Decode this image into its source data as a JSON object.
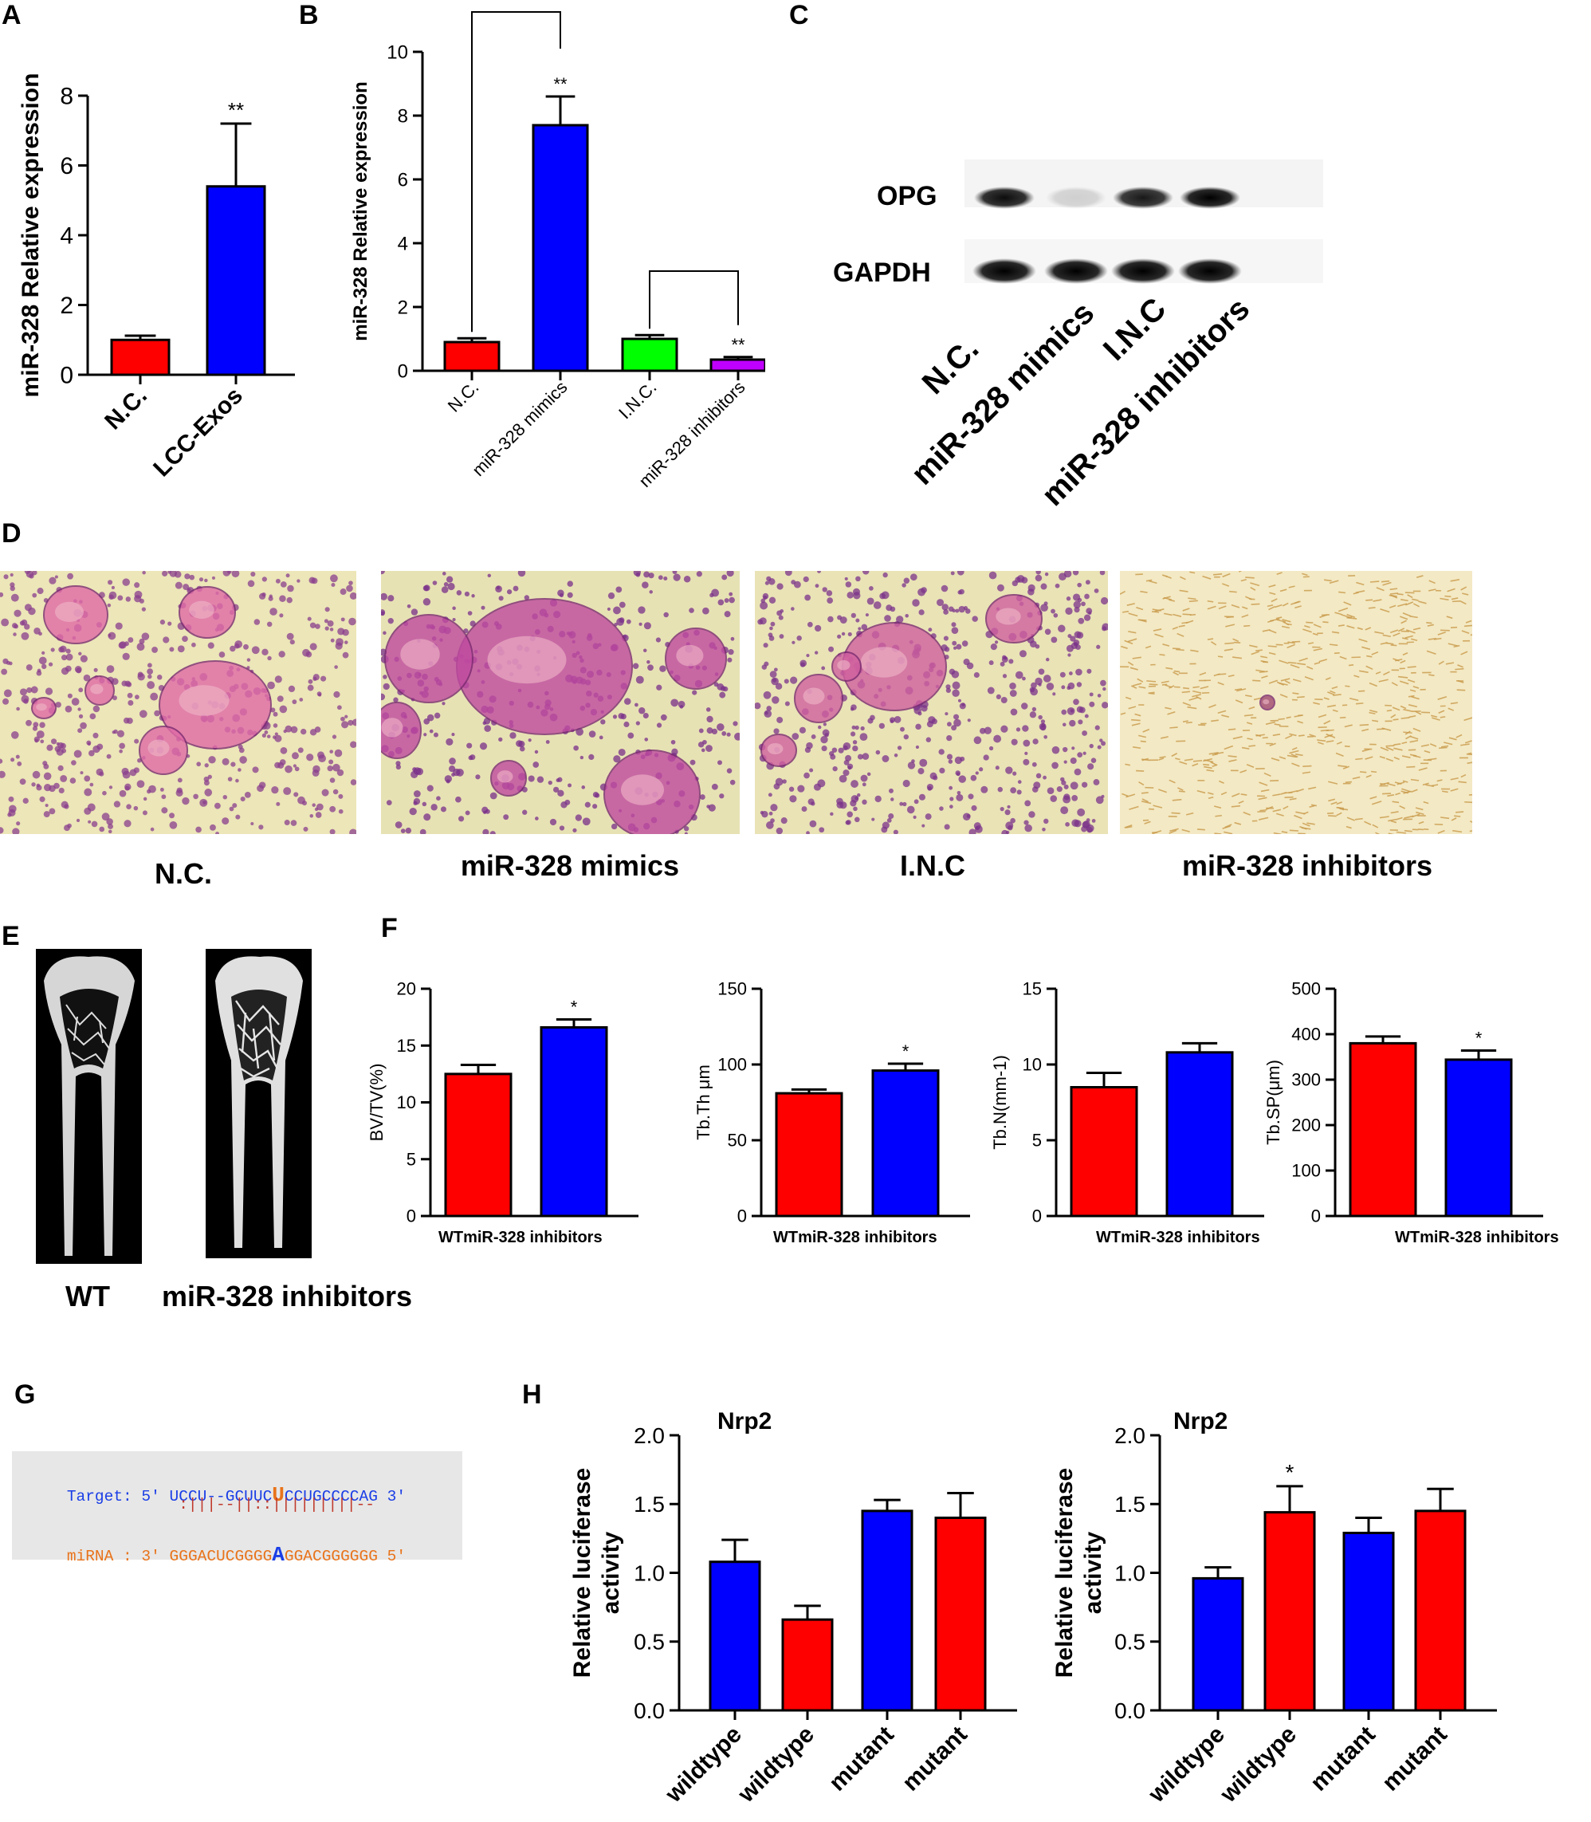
{
  "panel_labels": {
    "A": "A",
    "B": "B",
    "C": "C",
    "D": "D",
    "E": "E",
    "F": "F",
    "G": "G",
    "H": "H"
  },
  "colors": {
    "red": "#ff0000",
    "blue": "#0000ff",
    "green": "#00ff00",
    "purple": "#c000ff"
  },
  "chart_data": [
    {
      "id": "A",
      "type": "bar",
      "ylabel": "miR-328 Relative expression",
      "ylim": [
        0,
        8
      ],
      "yticks": [
        0,
        2,
        4,
        6,
        8
      ],
      "categories": [
        "N.C.",
        "LCC-Exos"
      ],
      "values": [
        1.0,
        5.4
      ],
      "errors": [
        0.12,
        1.8
      ],
      "colors": [
        "#ff0000",
        "#0000ff"
      ],
      "annotations": [
        "",
        "**"
      ]
    },
    {
      "id": "B",
      "type": "bar",
      "ylabel": "miR-328 Relative expression",
      "ylim": [
        0,
        10
      ],
      "yticks": [
        0,
        2,
        4,
        6,
        8,
        10
      ],
      "categories": [
        "N.C.",
        "miR-328 mimics",
        "I.N.C.",
        "miR-328 inhibitors"
      ],
      "values": [
        0.9,
        7.7,
        1.0,
        0.35
      ],
      "errors": [
        0.12,
        0.9,
        0.12,
        0.08
      ],
      "colors": [
        "#ff0000",
        "#0000ff",
        "#00ff00",
        "#c000ff"
      ],
      "annotations": [
        "",
        "**",
        "",
        "**"
      ],
      "brackets": [
        [
          0,
          1
        ],
        [
          2,
          3
        ]
      ]
    },
    {
      "id": "F1",
      "type": "bar",
      "ylabel": "BV/TV(%)",
      "ylim": [
        0,
        20
      ],
      "yticks": [
        0,
        5,
        10,
        15,
        20
      ],
      "xlabel_text": "WTmiR-328 inhibitors",
      "values": [
        12.5,
        16.6
      ],
      "errors": [
        0.8,
        0.7
      ],
      "colors": [
        "#ff0000",
        "#0000ff"
      ],
      "annotations": [
        "",
        "*"
      ]
    },
    {
      "id": "F2",
      "type": "bar",
      "ylabel": "Tb.Th μm",
      "ylim": [
        0,
        150
      ],
      "yticks": [
        0,
        50,
        100,
        150
      ],
      "xlabel_text": "WTmiR-328 inhibitors",
      "values": [
        81,
        96
      ],
      "errors": [
        2.5,
        4.5
      ],
      "colors": [
        "#ff0000",
        "#0000ff"
      ],
      "annotations": [
        "",
        "*"
      ]
    },
    {
      "id": "F3",
      "type": "bar",
      "ylabel": "Tb.N(mm-1)",
      "ylim": [
        0,
        15
      ],
      "yticks": [
        0,
        5,
        10,
        15
      ],
      "xlabel_text": "WTmiR-328 inhibitors",
      "values": [
        8.5,
        10.8
      ],
      "errors": [
        0.95,
        0.6
      ],
      "colors": [
        "#ff0000",
        "#0000ff"
      ],
      "annotations": [
        "",
        ""
      ]
    },
    {
      "id": "F4",
      "type": "bar",
      "ylabel": "Tb.SP(μm)",
      "ylim": [
        0,
        500
      ],
      "yticks": [
        0,
        100,
        200,
        300,
        400,
        500
      ],
      "xlabel_text": "WTmiR-328 inhibitors",
      "values": [
        380,
        344
      ],
      "errors": [
        15,
        20
      ],
      "colors": [
        "#ff0000",
        "#0000ff"
      ],
      "annotations": [
        "",
        "*"
      ]
    },
    {
      "id": "H1",
      "type": "bar",
      "title": "Nrp2",
      "ylabel": "Relative luciferase activity",
      "ylim": [
        0,
        2.0
      ],
      "yticks": [
        "0.0",
        "0.5",
        "1.0",
        "1.5",
        "2.0"
      ],
      "categories": [
        "wildtype",
        "wildtype",
        "mutant",
        "mutant"
      ],
      "values": [
        1.08,
        0.66,
        1.45,
        1.4
      ],
      "errors": [
        0.16,
        0.1,
        0.08,
        0.18
      ],
      "colors": [
        "#0000ff",
        "#ff0000",
        "#0000ff",
        "#ff0000"
      ],
      "annotations": [
        "",
        "",
        "",
        ""
      ]
    },
    {
      "id": "H2",
      "type": "bar",
      "title": "Nrp2",
      "ylabel": "Relative luciferase activity",
      "ylim": [
        0,
        2.0
      ],
      "yticks": [
        "0.0",
        "0.5",
        "1.0",
        "1.5",
        "2.0"
      ],
      "categories": [
        "wildtype",
        "wildtype",
        "mutant",
        "mutant"
      ],
      "values": [
        0.96,
        1.44,
        1.29,
        1.45
      ],
      "errors": [
        0.08,
        0.19,
        0.11,
        0.16
      ],
      "colors": [
        "#0000ff",
        "#ff0000",
        "#0000ff",
        "#ff0000"
      ],
      "annotations": [
        "",
        "*",
        "",
        ""
      ]
    }
  ],
  "western_blot": {
    "rows": [
      "OPG",
      "GAPDH"
    ],
    "lanes": [
      "N.C.",
      "miR-328 mimics",
      "I.N.C",
      "miR-328 inhibitors"
    ],
    "opg_intensity": [
      0.95,
      0.15,
      0.9,
      1.0
    ],
    "gapdh_intensity": [
      1.0,
      1.0,
      1.0,
      1.0
    ]
  },
  "micrographs": {
    "captions": [
      "N.C.",
      "miR-328 mimics",
      "I.N.C",
      "miR-328 inhibitors"
    ]
  },
  "microct": {
    "captions": [
      "WT",
      "miR-328 inhibitors"
    ]
  },
  "sequence": {
    "target_label": "Target: 5'",
    "target_a": "UCCU--GCUUC",
    "target_mut": "U",
    "target_b": "CCUGCCCCAG 3'",
    "match": "                :|||--||::|||||||||--",
    "mirna_label": "miRNA : 3'",
    "mirna_a": "GGGACUCGGGG",
    "mirna_mut": "A",
    "mirna_b": "GGACGGGGGG 5'"
  }
}
